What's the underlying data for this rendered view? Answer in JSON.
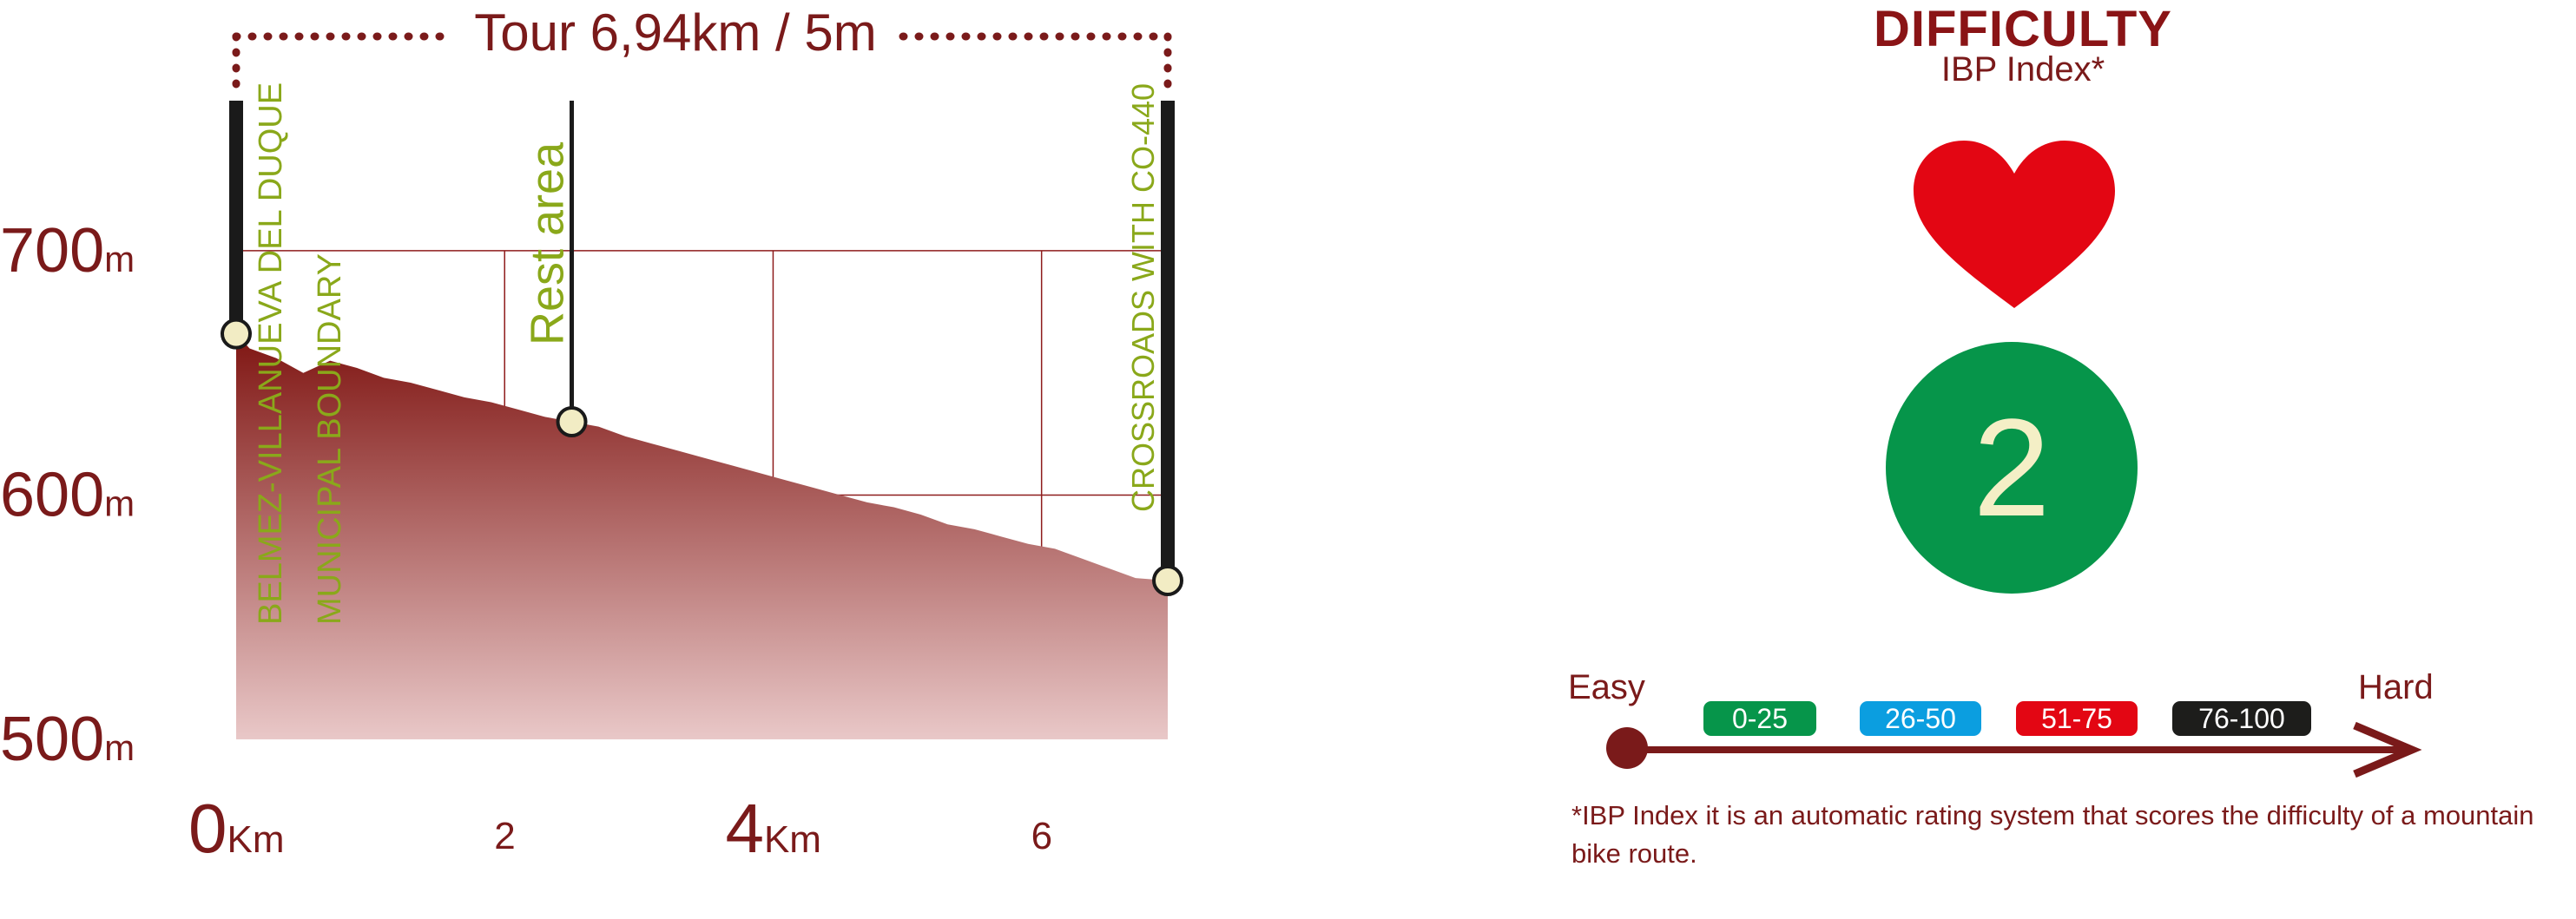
{
  "chart_data": {
    "type": "area",
    "title": "Tour 6,94km / 5m",
    "x_unit": "Km",
    "y_unit": "m",
    "xlim": [
      0,
      6.94
    ],
    "ylim": [
      500,
      760
    ],
    "y_ticks": [
      {
        "value": 500,
        "label": "500"
      },
      {
        "value": 600,
        "label": "600"
      },
      {
        "value": 700,
        "label": "700"
      }
    ],
    "x_ticks": [
      {
        "value": 0,
        "label": "0",
        "unit": "Km"
      },
      {
        "value": 2,
        "label": "2",
        "unit": ""
      },
      {
        "value": 4,
        "label": "4",
        "unit": "Km"
      },
      {
        "value": 6,
        "label": "6",
        "unit": ""
      }
    ],
    "grid": true,
    "x": [
      0,
      0.1,
      0.3,
      0.5,
      0.7,
      0.9,
      1.1,
      1.3,
      1.5,
      1.7,
      1.9,
      2.1,
      2.3,
      2.5,
      2.7,
      2.9,
      3.1,
      3.3,
      3.5,
      3.7,
      3.9,
      4.1,
      4.3,
      4.5,
      4.7,
      4.9,
      5.1,
      5.3,
      5.5,
      5.7,
      5.9,
      6.1,
      6.3,
      6.5,
      6.7,
      6.94
    ],
    "y": [
      666,
      660,
      656,
      650,
      655,
      652,
      648,
      646,
      643,
      640,
      638,
      635,
      632,
      630,
      628,
      624,
      621,
      618,
      615,
      612,
      609,
      606,
      603,
      600,
      597,
      595,
      592,
      588,
      586,
      583,
      580,
      578,
      574,
      570,
      566,
      565
    ],
    "waypoints": [
      {
        "x": 0,
        "y": 666,
        "label": "BELMEZ-VILLANUEVA DEL DUQUE",
        "label2": "MUNICIPAL BOUNDARY"
      },
      {
        "x": 2.5,
        "y": 630,
        "label": "Rest area",
        "label2": ""
      },
      {
        "x": 6.94,
        "y": 565,
        "label": "CROSSROADS WITH CO-440",
        "label2": ""
      }
    ],
    "colors": {
      "fill_top": "#7f1512",
      "fill_bottom": "#e9c8c8",
      "axis_text": "#7a1a1a",
      "grid": "#8e1c1c",
      "waypoint_text": "#8aa81a",
      "marker": "#1a1a1a",
      "dot": "#f2ecc4"
    }
  },
  "difficulty": {
    "title": "DIFFICULTY",
    "subtitle": "IBP Index*",
    "icon": "heart-icon",
    "rating": "2",
    "rating_color": "#06954a",
    "heart_color": "#e30613",
    "scale": {
      "easy_label": "Easy",
      "hard_label": "Hard",
      "ranges": [
        {
          "label": "0-25",
          "color": "#06954a"
        },
        {
          "label": "26-50",
          "color": "#0b9ee0"
        },
        {
          "label": "51-75",
          "color": "#e30613"
        },
        {
          "label": "76-100",
          "color": "#1d1d1b"
        }
      ]
    },
    "footnote": "*IBP Index it is an automatic rating system that scores the difficulty of a mountain bike route."
  }
}
